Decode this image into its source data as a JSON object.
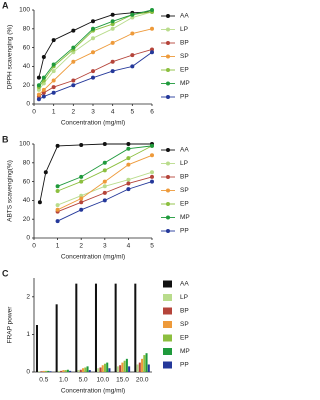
{
  "chart_data": [
    {
      "type": "line",
      "label": "A",
      "x_label": "Concentration (mg/ml)",
      "y_label": "DPPH scavenging (%)",
      "x": [
        0.25,
        0.5,
        1,
        2,
        3,
        4,
        5,
        6
      ],
      "xlim": [
        0,
        6
      ],
      "xticks": [
        0,
        1,
        2,
        3,
        4,
        5,
        6
      ],
      "ylim": [
        0,
        100
      ],
      "yticks": [
        0,
        20,
        40,
        60,
        80,
        100
      ],
      "legend": "right",
      "series": [
        {
          "name": "AA",
          "color": "#111111",
          "values": [
            28,
            50,
            68,
            78,
            88,
            95,
            97,
            98
          ]
        },
        {
          "name": "LP",
          "color": "#b9dc8c",
          "values": [
            15,
            22,
            35,
            55,
            70,
            80,
            92,
            98
          ]
        },
        {
          "name": "BP",
          "color": "#b5443a",
          "values": [
            8,
            12,
            18,
            25,
            35,
            45,
            52,
            58
          ]
        },
        {
          "name": "SP",
          "color": "#ee9a3a",
          "values": [
            10,
            15,
            25,
            45,
            55,
            65,
            75,
            80
          ]
        },
        {
          "name": "EP",
          "color": "#8cbf3f",
          "values": [
            18,
            25,
            40,
            58,
            78,
            85,
            95,
            98
          ]
        },
        {
          "name": "MP",
          "color": "#1f9a3c",
          "values": [
            20,
            28,
            42,
            60,
            80,
            88,
            95,
            100
          ]
        },
        {
          "name": "PP",
          "color": "#24389a",
          "values": [
            5,
            8,
            12,
            20,
            28,
            35,
            40,
            55
          ]
        }
      ]
    },
    {
      "type": "line",
      "label": "B",
      "x_label": "Concentration  (mg/ml)",
      "y_label": "ABTS scavenging(%)",
      "x": [
        0.25,
        0.5,
        1,
        2,
        3,
        4,
        5
      ],
      "xlim": [
        0,
        5
      ],
      "xticks": [
        0,
        1,
        2,
        3,
        4,
        5
      ],
      "ylim": [
        0,
        100
      ],
      "yticks": [
        0,
        20,
        40,
        60,
        80,
        100
      ],
      "legend": "right",
      "series": [
        {
          "name": "AA",
          "color": "#111111",
          "values": [
            38,
            70,
            98,
            99,
            100,
            100,
            100
          ]
        },
        {
          "name": "LP",
          "color": "#b9dc8c",
          "values": [
            null,
            null,
            35,
            45,
            55,
            62,
            70
          ]
        },
        {
          "name": "BP",
          "color": "#b5443a",
          "values": [
            null,
            null,
            28,
            38,
            48,
            58,
            65
          ]
        },
        {
          "name": "SP",
          "color": "#ee9a3a",
          "values": [
            null,
            null,
            30,
            42,
            60,
            78,
            88
          ]
        },
        {
          "name": "EP",
          "color": "#8cbf3f",
          "values": [
            null,
            null,
            50,
            60,
            72,
            85,
            98
          ]
        },
        {
          "name": "MP",
          "color": "#1f9a3c",
          "values": [
            null,
            null,
            55,
            65,
            80,
            95,
            98
          ]
        },
        {
          "name": "PP",
          "color": "#24389a",
          "values": [
            null,
            null,
            18,
            30,
            40,
            52,
            60
          ]
        }
      ]
    },
    {
      "type": "bar",
      "label": "C",
      "x_label": "Concentration  (mg/ml)",
      "y_label": "FRAP power",
      "categories": [
        "0.5",
        "1.0",
        "5.0",
        "10.0",
        "15.0",
        "20.0"
      ],
      "ylim": [
        0,
        2.5
      ],
      "yticks": [
        0,
        1,
        2
      ],
      "legend": "right",
      "series": [
        {
          "name": "AA",
          "color": "#111111",
          "values": [
            1.25,
            1.8,
            2.35,
            2.35,
            2.35,
            2.35
          ]
        },
        {
          "name": "LP",
          "color": "#b9dc8c",
          "values": [
            0.02,
            0.03,
            0.05,
            0.1,
            0.15,
            0.2
          ]
        },
        {
          "name": "BP",
          "color": "#b5443a",
          "values": [
            0.02,
            0.03,
            0.06,
            0.12,
            0.18,
            0.25
          ]
        },
        {
          "name": "SP",
          "color": "#ee9a3a",
          "values": [
            0.03,
            0.05,
            0.1,
            0.18,
            0.25,
            0.35
          ]
        },
        {
          "name": "EP",
          "color": "#8cbf3f",
          "values": [
            0.03,
            0.05,
            0.12,
            0.22,
            0.3,
            0.45
          ]
        },
        {
          "name": "MP",
          "color": "#1f9a3c",
          "values": [
            0.03,
            0.06,
            0.15,
            0.25,
            0.35,
            0.5
          ]
        },
        {
          "name": "PP",
          "color": "#24389a",
          "values": [
            0.02,
            0.03,
            0.05,
            0.1,
            0.15,
            0.2
          ]
        }
      ]
    }
  ]
}
